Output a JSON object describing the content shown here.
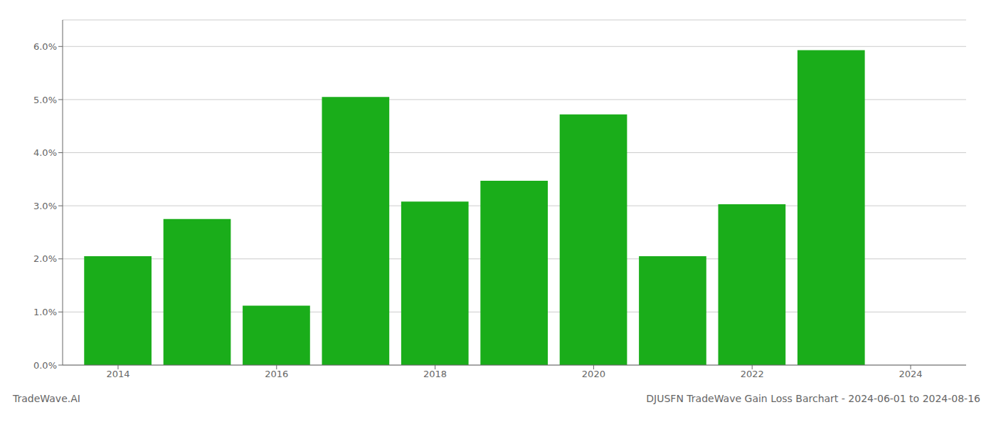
{
  "chart_data": {
    "type": "bar",
    "title": "DJUSFN TradeWave Gain Loss Barchart - 2024-06-01 to 2024-08-16",
    "annotations": [
      {
        "text": "TradeWave.AI"
      }
    ],
    "x": [
      2014,
      2015,
      2016,
      2017,
      2018,
      2019,
      2020,
      2021,
      2022,
      2023
    ],
    "values": [
      0.0205,
      0.0275,
      0.0112,
      0.0505,
      0.0308,
      0.0347,
      0.0472,
      0.0205,
      0.0303,
      0.0593
    ],
    "color": "#1aad1a",
    "xlim": [
      2013.3,
      2024.7
    ],
    "xticks": [
      2014,
      2016,
      2018,
      2020,
      2022,
      2024
    ],
    "ylim": [
      0,
      0.065
    ],
    "yticks": [
      {
        "value": 0.0,
        "label": "0.0%"
      },
      {
        "value": 0.01,
        "label": "1.0%"
      },
      {
        "value": 0.02,
        "label": "2.0%"
      },
      {
        "value": 0.03,
        "label": "3.0%"
      },
      {
        "value": 0.04,
        "label": "4.0%"
      },
      {
        "value": 0.05,
        "label": "5.0%"
      },
      {
        "value": 0.06,
        "label": "6.0%"
      }
    ],
    "grid": true
  }
}
